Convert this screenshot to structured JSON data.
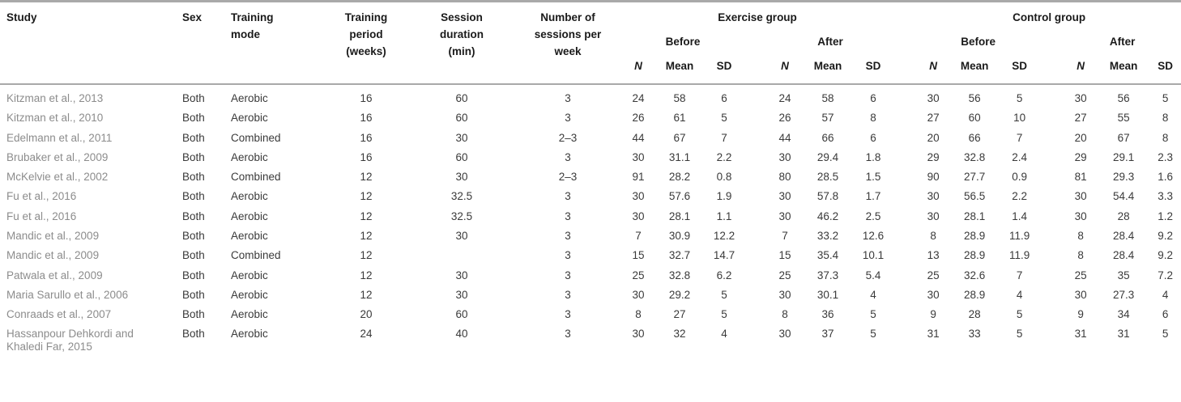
{
  "table": {
    "column_headers": {
      "study": "Study",
      "sex": "Sex",
      "training_mode": "Training mode",
      "training_period": "Training period (weeks)",
      "session_duration": "Session duration (min)",
      "sessions_per_week": "Number of sessions per week"
    },
    "groups": [
      {
        "label": "Exercise group",
        "subgroups": [
          "Before",
          "After"
        ]
      },
      {
        "label": "Control group",
        "subgroups": [
          "Before",
          "After"
        ]
      }
    ],
    "stat_headers": [
      "N",
      "Mean",
      "SD"
    ],
    "rows": [
      {
        "study": "Kitzman et al., 2013",
        "sex": "Both",
        "training_mode": "Aerobic",
        "training_period": "16",
        "session_duration": "60",
        "sessions_per_week": "3",
        "exercise_before": [
          "24",
          "58",
          "6"
        ],
        "exercise_after": [
          "24",
          "58",
          "6"
        ],
        "control_before": [
          "30",
          "56",
          "5"
        ],
        "control_after": [
          "30",
          "56",
          "5"
        ]
      },
      {
        "study": "Kitzman et al., 2010",
        "sex": "Both",
        "training_mode": "Aerobic",
        "training_period": "16",
        "session_duration": "60",
        "sessions_per_week": "3",
        "exercise_before": [
          "26",
          "61",
          "5"
        ],
        "exercise_after": [
          "26",
          "57",
          "8"
        ],
        "control_before": [
          "27",
          "60",
          "10"
        ],
        "control_after": [
          "27",
          "55",
          "8"
        ]
      },
      {
        "study": "Edelmann et al., 2011",
        "sex": "Both",
        "training_mode": "Combined",
        "training_period": "16",
        "session_duration": "30",
        "sessions_per_week": "2–3",
        "exercise_before": [
          "44",
          "67",
          "7"
        ],
        "exercise_after": [
          "44",
          "66",
          "6"
        ],
        "control_before": [
          "20",
          "66",
          "7"
        ],
        "control_after": [
          "20",
          "67",
          "8"
        ]
      },
      {
        "study": "Brubaker et al., 2009",
        "sex": "Both",
        "training_mode": "Aerobic",
        "training_period": "16",
        "session_duration": "60",
        "sessions_per_week": "3",
        "exercise_before": [
          "30",
          "31.1",
          "2.2"
        ],
        "exercise_after": [
          "30",
          "29.4",
          "1.8"
        ],
        "control_before": [
          "29",
          "32.8",
          "2.4"
        ],
        "control_after": [
          "29",
          "29.1",
          "2.3"
        ]
      },
      {
        "study": "McKelvie et al., 2002",
        "sex": "Both",
        "training_mode": "Combined",
        "training_period": "12",
        "session_duration": "30",
        "sessions_per_week": "2–3",
        "exercise_before": [
          "91",
          "28.2",
          "0.8"
        ],
        "exercise_after": [
          "80",
          "28.5",
          "1.5"
        ],
        "control_before": [
          "90",
          "27.7",
          "0.9"
        ],
        "control_after": [
          "81",
          "29.3",
          "1.6"
        ]
      },
      {
        "study": "Fu et al., 2016",
        "sex": "Both",
        "training_mode": "Aerobic",
        "training_period": "12",
        "session_duration": "32.5",
        "sessions_per_week": "3",
        "exercise_before": [
          "30",
          "57.6",
          "1.9"
        ],
        "exercise_after": [
          "30",
          "57.8",
          "1.7"
        ],
        "control_before": [
          "30",
          "56.5",
          "2.2"
        ],
        "control_after": [
          "30",
          "54.4",
          "3.3"
        ]
      },
      {
        "study": "Fu et al., 2016",
        "sex": "Both",
        "training_mode": "Aerobic",
        "training_period": "12",
        "session_duration": "32.5",
        "sessions_per_week": "3",
        "exercise_before": [
          "30",
          "28.1",
          "1.1"
        ],
        "exercise_after": [
          "30",
          "46.2",
          "2.5"
        ],
        "control_before": [
          "30",
          "28.1",
          "1.4"
        ],
        "control_after": [
          "30",
          "28",
          "1.2"
        ]
      },
      {
        "study": "Mandic et al., 2009",
        "sex": "Both",
        "training_mode": "Aerobic",
        "training_period": "12",
        "session_duration": "30",
        "sessions_per_week": "3",
        "exercise_before": [
          "7",
          "30.9",
          "12.2"
        ],
        "exercise_after": [
          "7",
          "33.2",
          "12.6"
        ],
        "control_before": [
          "8",
          "28.9",
          "11.9"
        ],
        "control_after": [
          "8",
          "28.4",
          "9.2"
        ]
      },
      {
        "study": "Mandic et al., 2009",
        "sex": "Both",
        "training_mode": "Combined",
        "training_period": "12",
        "session_duration": "",
        "sessions_per_week": "3",
        "exercise_before": [
          "15",
          "32.7",
          "14.7"
        ],
        "exercise_after": [
          "15",
          "35.4",
          "10.1"
        ],
        "control_before": [
          "13",
          "28.9",
          "11.9"
        ],
        "control_after": [
          "8",
          "28.4",
          "9.2"
        ]
      },
      {
        "study": "Patwala et al., 2009",
        "sex": "Both",
        "training_mode": "Aerobic",
        "training_period": "12",
        "session_duration": "30",
        "sessions_per_week": "3",
        "exercise_before": [
          "25",
          "32.8",
          "6.2"
        ],
        "exercise_after": [
          "25",
          "37.3",
          "5.4"
        ],
        "control_before": [
          "25",
          "32.6",
          "7"
        ],
        "control_after": [
          "25",
          "35",
          "7.2"
        ]
      },
      {
        "study": "Maria Sarullo et al., 2006",
        "sex": "Both",
        "training_mode": "Aerobic",
        "training_period": "12",
        "session_duration": "30",
        "sessions_per_week": "3",
        "exercise_before": [
          "30",
          "29.2",
          "5"
        ],
        "exercise_after": [
          "30",
          "30.1",
          "4"
        ],
        "control_before": [
          "30",
          "28.9",
          "4"
        ],
        "control_after": [
          "30",
          "27.3",
          "4"
        ]
      },
      {
        "study": "Conraads et al., 2007",
        "sex": "Both",
        "training_mode": "Aerobic",
        "training_period": "20",
        "session_duration": "60",
        "sessions_per_week": "3",
        "exercise_before": [
          "8",
          "27",
          "5"
        ],
        "exercise_after": [
          "8",
          "36",
          "5"
        ],
        "control_before": [
          "9",
          "28",
          "5"
        ],
        "control_after": [
          "9",
          "34",
          "6"
        ]
      },
      {
        "study": "Hassanpour Dehkordi and Khaledi Far, 2015",
        "sex": "Both",
        "training_mode": "Aerobic",
        "training_period": "24",
        "session_duration": "40",
        "sessions_per_week": "3",
        "exercise_before": [
          "30",
          "32",
          "4"
        ],
        "exercise_after": [
          "30",
          "37",
          "5"
        ],
        "control_before": [
          "31",
          "33",
          "5"
        ],
        "control_after": [
          "31",
          "31",
          "5"
        ]
      }
    ]
  },
  "colors": {
    "rule_gray": "#a9a9a9",
    "header_text": "#1a1a1a",
    "body_text": "#3a3a3a",
    "study_text": "#8c8c8c",
    "background": "#ffffff"
  }
}
